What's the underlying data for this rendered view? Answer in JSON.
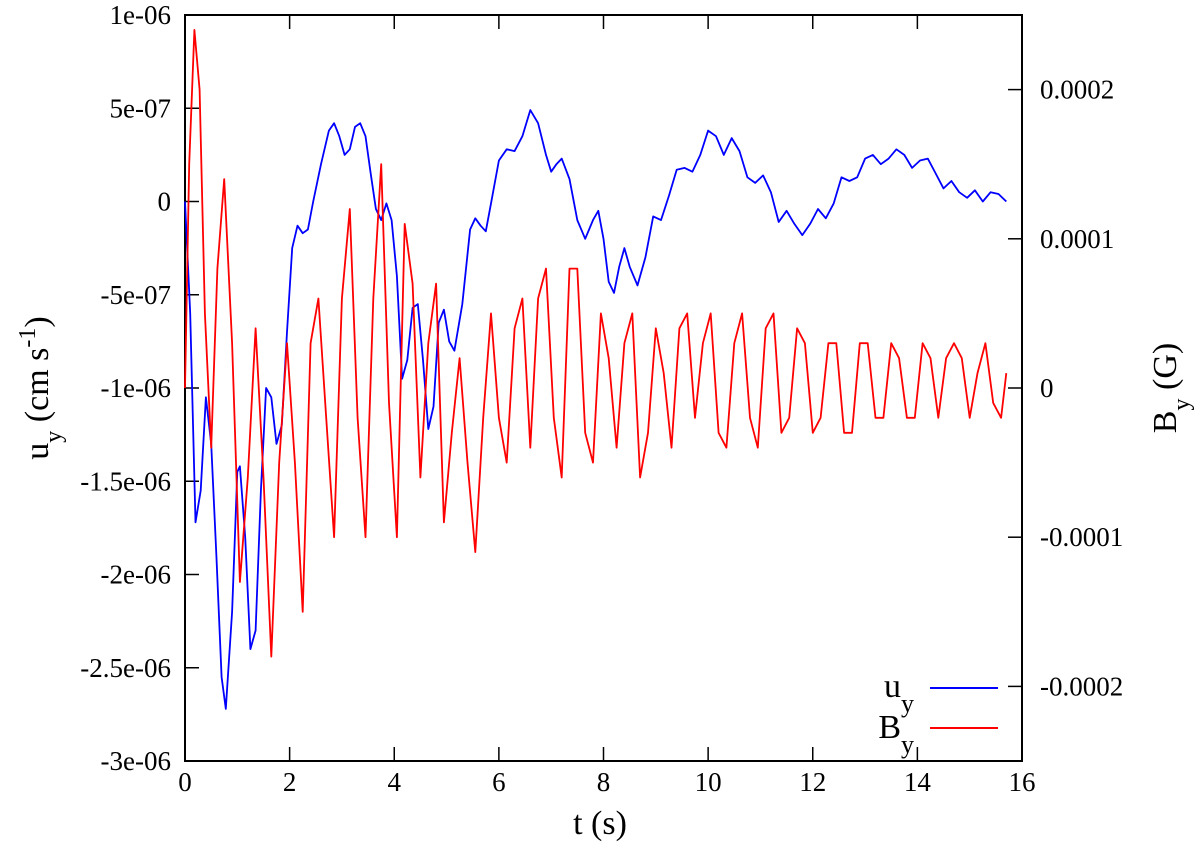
{
  "chart_data": {
    "type": "line",
    "xlabel": "t (s)",
    "ylabel": {
      "main": "u",
      "sub": "y",
      "unit_pre": " (cm s",
      "sup": "-1",
      "unit_post": ")"
    },
    "y2label": {
      "main": "B",
      "sub": "y",
      "unit": " (G)"
    },
    "xlim": [
      0,
      16
    ],
    "ylim": [
      -3e-06,
      1e-06
    ],
    "y2lim": [
      -0.00025,
      0.00025
    ],
    "x_ticks": [
      "0",
      "2",
      "4",
      "6",
      "8",
      "10",
      "12",
      "14",
      "16"
    ],
    "x_tick_values": [
      0,
      2,
      4,
      6,
      8,
      10,
      12,
      14,
      16
    ],
    "y_ticks": [
      "1e-06",
      "5e-07",
      "0",
      "-5e-07",
      "-1e-06",
      "-1.5e-06",
      "-2e-06",
      "-2.5e-06",
      "-3e-06"
    ],
    "y_tick_values": [
      1e-06,
      5e-07,
      0,
      -5e-07,
      -1e-06,
      -1.5e-06,
      -2e-06,
      -2.5e-06,
      -3e-06
    ],
    "y2_ticks": [
      "0.0002",
      "0.0001",
      "0",
      "-0.0001",
      "-0.0002"
    ],
    "y2_tick_values": [
      0.0002,
      0.0001,
      0,
      -0.0001,
      -0.0002
    ],
    "grid": false,
    "legend_position": "bottom-right",
    "series": [
      {
        "name": "u",
        "name_sub": "y",
        "axis": "left",
        "color": "#0000ff",
        "x": [
          0,
          0.1,
          0.2,
          0.3,
          0.4,
          0.5,
          0.6,
          0.7,
          0.78,
          0.9,
          1.0,
          1.05,
          1.15,
          1.25,
          1.35,
          1.45,
          1.55,
          1.65,
          1.75,
          1.85,
          1.95,
          2.05,
          2.15,
          2.25,
          2.35,
          2.45,
          2.6,
          2.75,
          2.85,
          2.95,
          3.05,
          3.15,
          3.25,
          3.35,
          3.45,
          3.55,
          3.65,
          3.75,
          3.85,
          3.95,
          4.05,
          4.15,
          4.25,
          4.35,
          4.45,
          4.55,
          4.65,
          4.75,
          4.85,
          4.95,
          5.05,
          5.15,
          5.3,
          5.45,
          5.55,
          5.65,
          5.75,
          5.85,
          6.0,
          6.15,
          6.3,
          6.45,
          6.6,
          6.75,
          6.9,
          7.0,
          7.1,
          7.2,
          7.35,
          7.5,
          7.65,
          7.8,
          7.9,
          8.0,
          8.1,
          8.2,
          8.3,
          8.4,
          8.5,
          8.65,
          8.8,
          8.95,
          9.1,
          9.25,
          9.4,
          9.55,
          9.7,
          9.85,
          10.0,
          10.15,
          10.3,
          10.45,
          10.6,
          10.75,
          10.9,
          11.05,
          11.2,
          11.35,
          11.5,
          11.65,
          11.8,
          11.95,
          12.1,
          12.25,
          12.4,
          12.55,
          12.7,
          12.85,
          13.0,
          13.15,
          13.3,
          13.45,
          13.6,
          13.75,
          13.9,
          14.05,
          14.2,
          14.35,
          14.5,
          14.65,
          14.8,
          14.95,
          15.1,
          15.25,
          15.4,
          15.55,
          15.7
        ],
        "values": [
          0,
          -6e-07,
          -1.72e-06,
          -1.55e-06,
          -1.05e-06,
          -1.3e-06,
          -1.9e-06,
          -2.55e-06,
          -2.72e-06,
          -2.2e-06,
          -1.45e-06,
          -1.42e-06,
          -1.8e-06,
          -2.4e-06,
          -2.3e-06,
          -1.55e-06,
          -1e-06,
          -1.05e-06,
          -1.3e-06,
          -1.2e-06,
          -7e-07,
          -2.5e-07,
          -1.3e-07,
          -1.7e-07,
          -1.5e-07,
          0,
          2e-07,
          3.8e-07,
          4.2e-07,
          3.5e-07,
          2.5e-07,
          2.8e-07,
          4e-07,
          4.2e-07,
          3.5e-07,
          1.5e-07,
          -4e-08,
          -1e-07,
          -1e-08,
          -1e-07,
          -4e-07,
          -9.5e-07,
          -8.5e-07,
          -5.7e-07,
          -5.5e-07,
          -8.5e-07,
          -1.22e-06,
          -1.1e-06,
          -6.5e-07,
          -5.8e-07,
          -7.5e-07,
          -8e-07,
          -5.5e-07,
          -1.5e-07,
          -9e-08,
          -1.3e-07,
          -1.6e-07,
          -1e-08,
          2.2e-07,
          2.8e-07,
          2.7e-07,
          3.5e-07,
          4.9e-07,
          4.2e-07,
          2.5e-07,
          1.6e-07,
          2e-07,
          2.3e-07,
          1.2e-07,
          -1e-07,
          -2e-07,
          -1e-07,
          -5e-08,
          -2e-07,
          -4.3e-07,
          -4.9e-07,
          -3.5e-07,
          -2.5e-07,
          -3.5e-07,
          -4.5e-07,
          -3e-07,
          -8e-08,
          -1e-07,
          3e-08,
          1.7e-07,
          1.8e-07,
          1.6e-07,
          2.5e-07,
          3.8e-07,
          3.5e-07,
          2.5e-07,
          3.4e-07,
          2.7e-07,
          1.3e-07,
          1e-07,
          1.4e-07,
          5e-08,
          -1.1e-07,
          -5e-08,
          -1.2e-07,
          -1.8e-07,
          -1.2e-07,
          -4e-08,
          -9e-08,
          -1e-08,
          1.3e-07,
          1.1e-07,
          1.3e-07,
          2.3e-07,
          2.5e-07,
          2e-07,
          2.3e-07,
          2.8e-07,
          2.5e-07,
          1.8e-07,
          2.2e-07,
          2.3e-07,
          1.5e-07,
          7e-08,
          1.1e-07,
          5e-08,
          2e-08,
          6e-08,
          0,
          5e-08,
          4e-08,
          0
        ]
      },
      {
        "name": "B",
        "name_sub": "y",
        "axis": "right",
        "color": "#ff0000",
        "x": [
          0,
          0.08,
          0.18,
          0.28,
          0.38,
          0.5,
          0.62,
          0.75,
          0.9,
          1.05,
          1.2,
          1.35,
          1.5,
          1.65,
          1.8,
          1.95,
          2.1,
          2.25,
          2.4,
          2.55,
          2.7,
          2.85,
          3.0,
          3.15,
          3.3,
          3.45,
          3.6,
          3.75,
          3.9,
          4.05,
          4.2,
          4.35,
          4.5,
          4.65,
          4.8,
          4.95,
          5.1,
          5.25,
          5.4,
          5.55,
          5.7,
          5.85,
          6.0,
          6.15,
          6.3,
          6.45,
          6.6,
          6.75,
          6.9,
          7.05,
          7.2,
          7.35,
          7.5,
          7.65,
          7.8,
          7.95,
          8.1,
          8.25,
          8.4,
          8.55,
          8.7,
          8.85,
          9.0,
          9.15,
          9.3,
          9.45,
          9.6,
          9.75,
          9.9,
          10.05,
          10.2,
          10.35,
          10.5,
          10.65,
          10.8,
          10.95,
          11.1,
          11.25,
          11.4,
          11.55,
          11.7,
          11.85,
          12.0,
          12.15,
          12.3,
          12.45,
          12.6,
          12.75,
          12.9,
          13.05,
          13.2,
          13.35,
          13.5,
          13.65,
          13.8,
          13.95,
          14.1,
          14.25,
          14.4,
          14.55,
          14.7,
          14.85,
          15.0,
          15.15,
          15.3,
          15.45,
          15.6,
          15.7
        ],
        "values": [
          0,
          0.00015,
          0.00024,
          0.0002,
          5e-05,
          -4e-05,
          8e-05,
          0.00014,
          3e-05,
          -0.00013,
          -6e-05,
          4e-05,
          -6e-05,
          -0.00018,
          -5e-05,
          3e-05,
          -5e-05,
          -0.00015,
          3e-05,
          6e-05,
          -2e-05,
          -0.0001,
          6e-05,
          0.00012,
          -2e-05,
          -0.0001,
          6e-05,
          0.00015,
          -1e-05,
          -0.0001,
          0.00011,
          7e-05,
          -6e-05,
          3e-05,
          7e-05,
          -9e-05,
          -3e-05,
          2e-05,
          -5e-05,
          -0.00011,
          -2e-05,
          5e-05,
          -2e-05,
          -5e-05,
          4e-05,
          6e-05,
          -4e-05,
          6e-05,
          8e-05,
          -2e-05,
          -6e-05,
          8e-05,
          8e-05,
          -3e-05,
          -5e-05,
          5e-05,
          2e-05,
          -4e-05,
          3e-05,
          5e-05,
          -6e-05,
          -3e-05,
          4e-05,
          1e-05,
          -4e-05,
          4e-05,
          5e-05,
          -2e-05,
          3e-05,
          5e-05,
          -3e-05,
          -4e-05,
          3e-05,
          5e-05,
          -2e-05,
          -4e-05,
          4e-05,
          5e-05,
          -3e-05,
          -2e-05,
          4e-05,
          3e-05,
          -3e-05,
          -2e-05,
          3e-05,
          3e-05,
          -3e-05,
          -3e-05,
          3e-05,
          3e-05,
          -2e-05,
          -2e-05,
          3e-05,
          2e-05,
          -2e-05,
          -2e-05,
          3e-05,
          2e-05,
          -2e-05,
          2e-05,
          3e-05,
          2e-05,
          -2e-05,
          1e-05,
          3e-05,
          -1e-05,
          -2e-05,
          1e-05
        ]
      }
    ]
  }
}
